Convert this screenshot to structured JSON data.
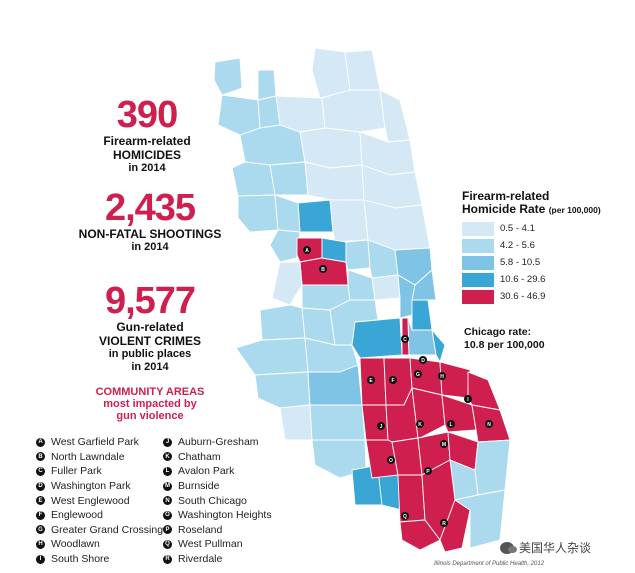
{
  "stats": [
    {
      "number": "390",
      "lines": [
        "Firearm-related",
        "HOMICIDES",
        "in 2014"
      ]
    },
    {
      "number": "2,435",
      "lines": [
        "NON-FATAL SHOOTINGS",
        "in 2014"
      ]
    },
    {
      "number": "9,577",
      "lines": [
        "Gun-related",
        "VIOLENT CRIMES",
        "in public places",
        "in 2014"
      ]
    }
  ],
  "community_heading": [
    "COMMUNITY AREAS",
    "most impacted by",
    "gun violence"
  ],
  "areas_left": [
    {
      "letter": "A",
      "name": "West Garfield Park"
    },
    {
      "letter": "B",
      "name": "North Lawndale"
    },
    {
      "letter": "C",
      "name": "Fuller Park"
    },
    {
      "letter": "D",
      "name": "Washington Park"
    },
    {
      "letter": "E",
      "name": "West Englewood"
    },
    {
      "letter": "F",
      "name": "Englewood"
    },
    {
      "letter": "G",
      "name": "Greater Grand Crossing"
    },
    {
      "letter": "H",
      "name": "Woodlawn"
    },
    {
      "letter": "I",
      "name": "South Shore"
    }
  ],
  "areas_right": [
    {
      "letter": "J",
      "name": "Auburn-Gresham"
    },
    {
      "letter": "K",
      "name": "Chatham"
    },
    {
      "letter": "L",
      "name": "Avalon Park"
    },
    {
      "letter": "M",
      "name": "Burnside"
    },
    {
      "letter": "N",
      "name": "South Chicago"
    },
    {
      "letter": "O",
      "name": "Washington Heights"
    },
    {
      "letter": "P",
      "name": "Roseland"
    },
    {
      "letter": "Q",
      "name": "West Pullman"
    },
    {
      "letter": "R",
      "name": "Riverdale"
    }
  ],
  "legend": {
    "title_line1": "Firearm-related",
    "title_line2": "Homicide Rate",
    "title_unit": "(per 100,000)",
    "bins": [
      {
        "label": "0.5 - 4.1",
        "color": "#d4e9f5"
      },
      {
        "label": "4.2 - 5.6",
        "color": "#abd9ee"
      },
      {
        "label": "5.8 - 10.5",
        "color": "#7fc4e5"
      },
      {
        "label": "10.6 - 29.6",
        "color": "#3aa6d6"
      },
      {
        "label": "30.6 - 46.9",
        "color": "#cf1f4e"
      }
    ]
  },
  "chicago_rate": [
    "Chicago rate:",
    "10.8 per 100,000"
  ],
  "source": "Illinois Department of Public Health, 2012",
  "watermark": "美国华人杂谈",
  "map": {
    "map_markers": [
      "A",
      "B",
      "C",
      "D",
      "E",
      "F",
      "G",
      "H",
      "I",
      "J",
      "K",
      "L",
      "M",
      "N",
      "O",
      "P",
      "Q",
      "R"
    ]
  }
}
